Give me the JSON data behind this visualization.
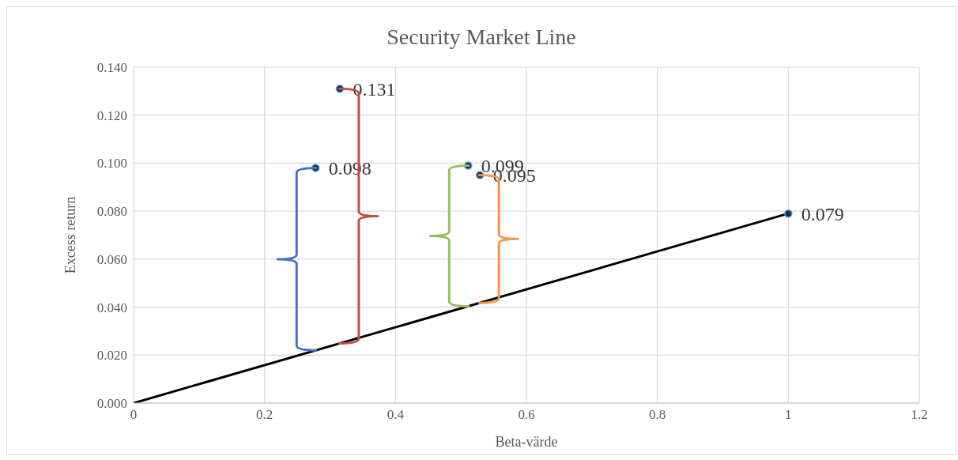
{
  "chart_data": {
    "type": "scatter",
    "title": "Security Market Line",
    "xlabel": "Beta-värde",
    "ylabel": "Excess return",
    "series": [
      {
        "type": "line",
        "color": "#000000",
        "x": [
          0,
          1
        ],
        "values": [
          0,
          0.079
        ],
        "marker": "none"
      },
      {
        "color": "#1f2d4d",
        "x": [
          0.278,
          0.315,
          0.511,
          0.529,
          1
        ],
        "values": [
          0.098,
          0.131,
          0.099,
          0.095,
          0.079
        ],
        "value_labels": [
          "0.098",
          "0.131",
          "0.099",
          "0.095",
          "0.079"
        ],
        "marker": "circle"
      }
    ],
    "xlim": [
      0,
      1.2
    ],
    "xticks": [
      0,
      0.2,
      0.4,
      0.6,
      0.8,
      1,
      1.2
    ],
    "ylim": [
      0,
      0.14
    ],
    "yticks": [
      {
        "value": 0,
        "label": "0.000"
      },
      {
        "value": 0.02,
        "label": "0.020"
      },
      {
        "value": 0.04,
        "label": "0.040"
      },
      {
        "value": 0.06,
        "label": "0.060"
      },
      {
        "value": 0.08,
        "label": "0.080"
      },
      {
        "value": 0.1,
        "label": "0.100"
      },
      {
        "value": 0.12,
        "label": "0.120"
      },
      {
        "value": 0.14,
        "label": "0.140"
      }
    ],
    "grid": true,
    "legend": false
  }
}
